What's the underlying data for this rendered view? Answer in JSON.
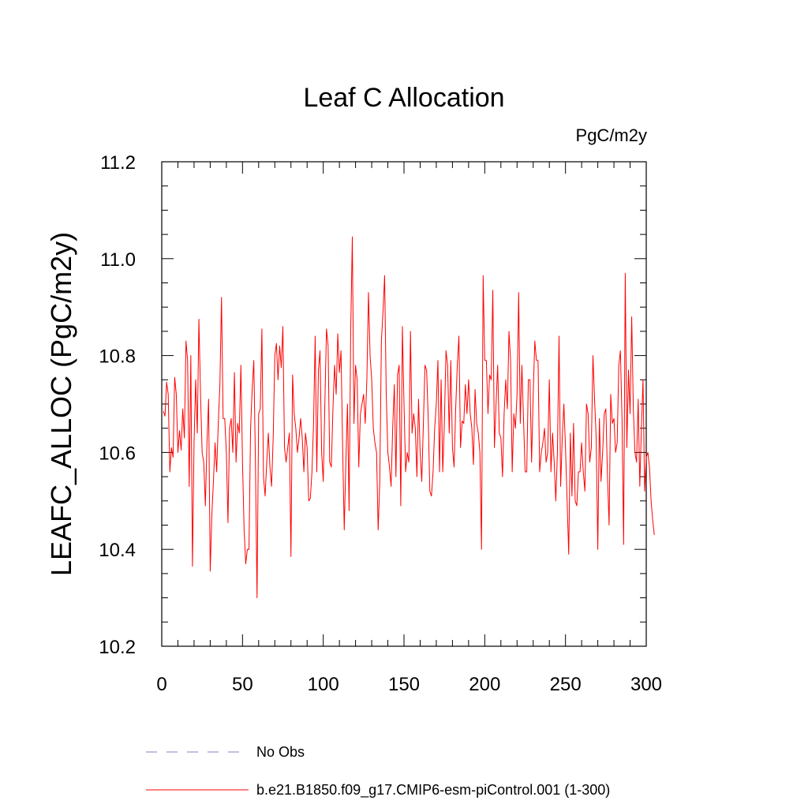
{
  "chart_data": {
    "type": "line",
    "title": "Leaf C Allocation",
    "units_label": "PgC/m2y",
    "xlabel": "",
    "ylabel": "LEAFC_ALLOC  (PgC/m2y)",
    "xlim": [
      0,
      300
    ],
    "ylim": [
      10.2,
      11.2
    ],
    "x_ticks": [
      0,
      50,
      100,
      150,
      200,
      250,
      300
    ],
    "x_tick_labels": [
      "0",
      "50",
      "100",
      "150",
      "200",
      "250",
      "300"
    ],
    "y_ticks": [
      10.2,
      10.4,
      10.6,
      10.8,
      11.0,
      11.2
    ],
    "y_tick_labels": [
      "10.2",
      "10.4",
      "10.6",
      "10.8",
      "11.0",
      "11.2"
    ],
    "grid": false,
    "legend_position": "bottom",
    "legend": [
      {
        "label": "No Obs",
        "color": "#8080c0",
        "style": "dashed"
      },
      {
        "label": "b.e21.B1850.f09_g17.CMIP6-esm-piControl.001 (1-300)",
        "color": "#ff0000",
        "style": "solid"
      }
    ],
    "series": [
      {
        "name": "b.e21.B1850.f09_g17.CMIP6-esm-piControl.001 (1-300)",
        "color": "#ff0000",
        "x_start": 1,
        "x_step": 1,
        "values": [
          10.685,
          10.675,
          10.745,
          10.72,
          10.56,
          10.61,
          10.59,
          10.755,
          10.72,
          10.6,
          10.645,
          10.605,
          10.69,
          10.63,
          10.83,
          10.79,
          10.53,
          10.8,
          10.365,
          10.62,
          10.75,
          10.64,
          10.875,
          10.72,
          10.6,
          10.58,
          10.49,
          10.62,
          10.71,
          10.355,
          10.47,
          10.54,
          10.62,
          10.56,
          10.66,
          10.74,
          10.92,
          10.67,
          10.67,
          10.6,
          10.455,
          10.65,
          10.67,
          10.6,
          10.765,
          10.58,
          10.66,
          10.64,
          10.78,
          10.58,
          10.44,
          10.37,
          10.4,
          10.4,
          10.65,
          10.73,
          10.79,
          10.58,
          10.3,
          10.68,
          10.69,
          10.855,
          10.55,
          10.51,
          10.58,
          10.64,
          10.57,
          10.53,
          10.63,
          10.8,
          10.825,
          10.75,
          10.82,
          10.775,
          10.86,
          10.61,
          10.58,
          10.61,
          10.64,
          10.385,
          10.76,
          10.68,
          10.65,
          10.6,
          10.63,
          10.67,
          10.63,
          10.56,
          10.64,
          10.61,
          10.5,
          10.505,
          10.56,
          10.66,
          10.84,
          10.56,
          10.77,
          10.81,
          10.6,
          10.54,
          10.7,
          10.855,
          10.82,
          10.58,
          10.57,
          10.69,
          10.78,
          10.72,
          10.845,
          10.765,
          10.81,
          10.61,
          10.44,
          10.58,
          10.7,
          10.48,
          10.85,
          11.045,
          10.66,
          10.78,
          10.75,
          10.57,
          10.68,
          10.7,
          10.72,
          10.66,
          10.75,
          10.93,
          10.8,
          10.75,
          10.65,
          10.62,
          10.6,
          10.44,
          10.54,
          10.83,
          10.89,
          10.965,
          10.72,
          10.6,
          10.57,
          10.53,
          10.65,
          10.74,
          10.55,
          10.76,
          10.78,
          10.49,
          10.86,
          10.7,
          10.56,
          10.6,
          10.58,
          10.85,
          10.64,
          10.68,
          10.65,
          10.55,
          10.71,
          10.6,
          10.54,
          10.66,
          10.78,
          10.77,
          10.67,
          10.52,
          10.51,
          10.56,
          10.65,
          10.7,
          10.79,
          10.56,
          10.75,
          10.56,
          10.66,
          10.81,
          10.78,
          10.64,
          10.79,
          10.61,
          10.57,
          10.69,
          10.78,
          10.84,
          10.61,
          10.665,
          10.66,
          10.74,
          10.68,
          10.75,
          10.68,
          10.65,
          10.575,
          10.73,
          10.66,
          10.64,
          10.6,
          10.4,
          10.965,
          10.79,
          10.79,
          10.68,
          10.76,
          10.75,
          10.935,
          10.61,
          10.7,
          10.78,
          10.64,
          10.63,
          10.55,
          10.68,
          10.75,
          10.69,
          10.85,
          10.79,
          10.56,
          10.68,
          10.65,
          10.72,
          10.93,
          10.66,
          10.78,
          10.67,
          10.56,
          10.56,
          10.75,
          10.75,
          10.58,
          10.72,
          10.83,
          10.79,
          10.79,
          10.56,
          10.6,
          10.62,
          10.65,
          10.58,
          10.6,
          10.75,
          10.56,
          10.64,
          10.58,
          10.5,
          10.6,
          10.84,
          10.53,
          10.63,
          10.7,
          10.61,
          10.5,
          10.39,
          10.64,
          10.51,
          10.66,
          10.5,
          10.49,
          10.56,
          10.56,
          10.62,
          10.56,
          10.52,
          10.7,
          10.68,
          10.58,
          10.61,
          10.8,
          10.71,
          10.63,
          10.4,
          10.67,
          10.54,
          10.6,
          10.68,
          10.69,
          10.55,
          10.45,
          10.72,
          10.66,
          10.67,
          10.6,
          10.62,
          10.78,
          10.81,
          10.67,
          10.41,
          10.97,
          10.61,
          10.77,
          10.68,
          10.88,
          10.69,
          10.6,
          10.58,
          10.71,
          10.53,
          10.65,
          10.75,
          10.52,
          10.59,
          10.6,
          10.57,
          10.5,
          10.46,
          10.43
        ]
      }
    ]
  }
}
